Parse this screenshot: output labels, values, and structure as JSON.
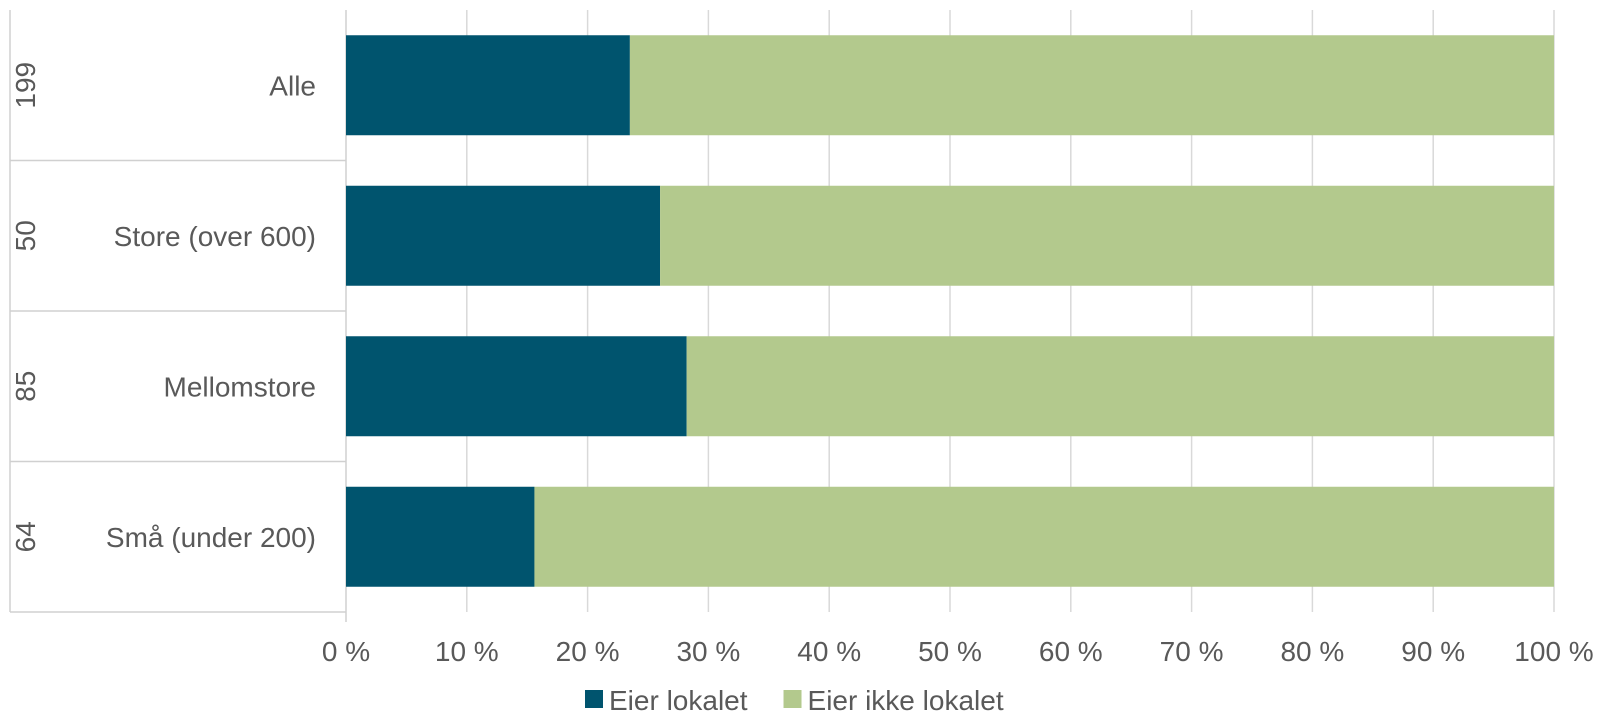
{
  "chart_data": {
    "type": "bar",
    "orientation": "horizontal",
    "stacked": "percent",
    "categories": [
      "Alle",
      "Store (over 600)",
      "Mellomstore",
      "Små (under 200)"
    ],
    "group_counts": [
      "199",
      "50",
      "85",
      "64"
    ],
    "series": [
      {
        "name": "Eier lokalet",
        "color": "#00546e",
        "values": [
          23.5,
          26,
          28.2,
          15.6
        ]
      },
      {
        "name": "Eier ikke lokalet",
        "color": "#b3c98d",
        "values": [
          76.5,
          74,
          71.8,
          84.4
        ]
      }
    ],
    "xlim": [
      0,
      100
    ],
    "xticks": [
      0,
      10,
      20,
      30,
      40,
      50,
      60,
      70,
      80,
      90,
      100
    ],
    "xtick_labels": [
      "0 %",
      "10 %",
      "20 %",
      "30 %",
      "40 %",
      "50 %",
      "60 %",
      "70 %",
      "80 %",
      "90 %",
      "100 %"
    ],
    "grid": true,
    "legend": "bottom",
    "title": "",
    "xlabel": "",
    "ylabel": ""
  },
  "colors": {
    "grid": "#d9d9d9",
    "axis": "#d0d0d0",
    "text": "#595959"
  }
}
